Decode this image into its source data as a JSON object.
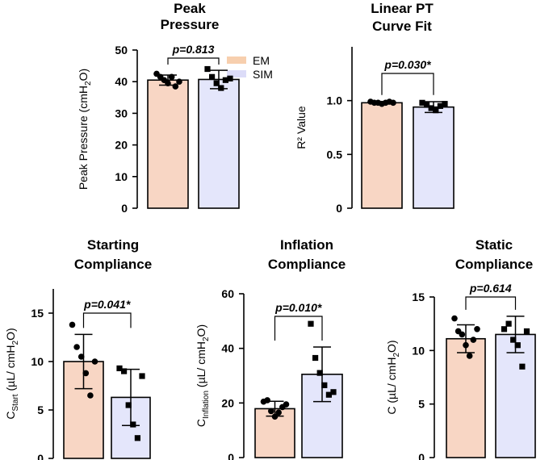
{
  "legend": [
    {
      "label": "EM",
      "color": "#f7cfae"
    },
    {
      "label": "SIM",
      "color": "#dcdcf8"
    }
  ],
  "colors": {
    "em_fill": "#f8d6c4",
    "sim_fill": "#e4e6fb",
    "outline": "#000000"
  },
  "chart_data": [
    {
      "id": "peak",
      "type": "bar",
      "title": [
        "Peak",
        "Pressure"
      ],
      "ylabel": "Peak Pressure (cmH2O)",
      "ylim": [
        0,
        50
      ],
      "yticks": [
        0,
        10,
        20,
        30,
        40,
        50
      ],
      "categories": [
        "EM",
        "SIM"
      ],
      "values": [
        40.5,
        40.7
      ],
      "sd": [
        1.6,
        2.9
      ],
      "points": [
        [
          42.5,
          41.5,
          40.5,
          39.5,
          41.5,
          38.5,
          40.0
        ],
        [
          44.0,
          41.5,
          39.5,
          38.0,
          40.5,
          41.0
        ]
      ],
      "annotation": "p=0.813"
    },
    {
      "id": "linear",
      "type": "bar",
      "title": [
        "Linear PT",
        "Curve Fit"
      ],
      "ylabel": "R² Value",
      "ylim": [
        0,
        1.5
      ],
      "yticks": [
        0,
        0.5,
        1.0
      ],
      "ytick_labels": [
        "0",
        "0.5",
        "1.0"
      ],
      "categories": [
        "EM",
        "SIM"
      ],
      "values": [
        0.98,
        0.94
      ],
      "sd": [
        0.012,
        0.05
      ],
      "points": [
        [
          0.99,
          0.98,
          0.98,
          0.97,
          0.98,
          0.99,
          0.98
        ],
        [
          0.98,
          0.96,
          0.93,
          0.91,
          0.95,
          0.97
        ]
      ],
      "annotation": "p=0.030*"
    },
    {
      "id": "starting",
      "type": "bar",
      "title": [
        "Starting",
        "Compliance"
      ],
      "ylabel": "C_Start (µL/ cmH2O)",
      "ylim": [
        0,
        17.5
      ],
      "yticks": [
        0,
        5,
        10,
        15
      ],
      "categories": [
        "EM",
        "SIM"
      ],
      "values": [
        10.0,
        6.3
      ],
      "sd": [
        2.8,
        2.9
      ],
      "points": [
        [
          13.8,
          11.5,
          10.5,
          8.8,
          6.5,
          10.0
        ],
        [
          9.3,
          9.0,
          5.5,
          3.5,
          2.1,
          8.5
        ]
      ],
      "annotation": "p=0.041*"
    },
    {
      "id": "inflation",
      "type": "bar",
      "title": [
        "Inflation",
        "Compliance"
      ],
      "ylabel": "C_Inflation (µL/ cmH2O)",
      "ylim": [
        0,
        60
      ],
      "yticks": [
        0,
        20,
        40,
        60
      ],
      "categories": [
        "EM",
        "SIM"
      ],
      "values": [
        17.9,
        30.5
      ],
      "sd": [
        2.7,
        10.0
      ],
      "points": [
        [
          20.5,
          21.0,
          17.0,
          15.0,
          16.5,
          18.5,
          19.5
        ],
        [
          49.0,
          36.5,
          31.0,
          26.5,
          23.0,
          24.0
        ]
      ],
      "annotation": "p=0.010*"
    },
    {
      "id": "static",
      "type": "bar",
      "title": [
        "Static",
        "Compliance"
      ],
      "ylabel": "C (µL/ cmH2O)",
      "ylim": [
        0,
        15
      ],
      "yticks": [
        0,
        5,
        10,
        15
      ],
      "categories": [
        "EM",
        "SIM"
      ],
      "values": [
        11.1,
        11.5
      ],
      "sd": [
        1.3,
        1.7
      ],
      "points": [
        [
          13.0,
          11.8,
          11.5,
          10.5,
          9.5,
          11.0,
          12.0
        ],
        [
          12.0,
          12.5,
          11.0,
          10.5,
          8.5,
          11.8
        ]
      ],
      "annotation": "p=0.614"
    }
  ]
}
